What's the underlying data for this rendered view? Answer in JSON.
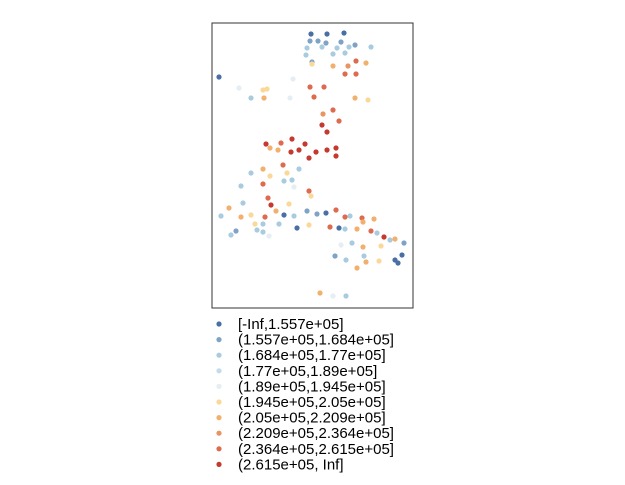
{
  "legend": {
    "entries": [
      {
        "label": "[-Inf,1.557e+05]",
        "color": "#4a6fa5"
      },
      {
        "label": "(1.557e+05,1.684e+05]",
        "color": "#7fa3c4"
      },
      {
        "label": "(1.684e+05,1.77e+05]",
        "color": "#a9cbe0"
      },
      {
        "label": "(1.77e+05,1.89e+05]",
        "color": "#c3dce9"
      },
      {
        "label": "(1.89e+05,1.945e+05]",
        "color": "#e4eef3"
      },
      {
        "label": "(1.945e+05,2.05e+05]",
        "color": "#fbd89a"
      },
      {
        "label": "(2.05e+05,2.209e+05]",
        "color": "#f2b06e"
      },
      {
        "label": "(2.209e+05,2.364e+05]",
        "color": "#e99463"
      },
      {
        "label": "(2.364e+05,2.615e+05]",
        "color": "#de6b4e"
      },
      {
        "label": "(2.615e+05, Inf]",
        "color": "#c6392f"
      }
    ]
  },
  "points": [
    {
      "x": 311,
      "y": 34,
      "c": 0
    },
    {
      "x": 327,
      "y": 34,
      "c": 0
    },
    {
      "x": 344,
      "y": 33,
      "c": 0
    },
    {
      "x": 310,
      "y": 41,
      "c": 1
    },
    {
      "x": 318,
      "y": 41,
      "c": 1
    },
    {
      "x": 326,
      "y": 43,
      "c": 1
    },
    {
      "x": 341,
      "y": 42,
      "c": 1
    },
    {
      "x": 355,
      "y": 45,
      "c": 1
    },
    {
      "x": 307,
      "y": 48,
      "c": 2
    },
    {
      "x": 322,
      "y": 47,
      "c": 2
    },
    {
      "x": 337,
      "y": 48,
      "c": 2
    },
    {
      "x": 349,
      "y": 47,
      "c": 2
    },
    {
      "x": 371,
      "y": 47,
      "c": 2
    },
    {
      "x": 306,
      "y": 55,
      "c": 2
    },
    {
      "x": 333,
      "y": 54,
      "c": 2
    },
    {
      "x": 345,
      "y": 53,
      "c": 2
    },
    {
      "x": 312,
      "y": 62,
      "c": 1
    },
    {
      "x": 356,
      "y": 61,
      "c": 8
    },
    {
      "x": 312,
      "y": 64,
      "c": 5
    },
    {
      "x": 333,
      "y": 66,
      "c": 6
    },
    {
      "x": 348,
      "y": 66,
      "c": 7
    },
    {
      "x": 366,
      "y": 63,
      "c": 6
    },
    {
      "x": 345,
      "y": 74,
      "c": 8
    },
    {
      "x": 356,
      "y": 74,
      "c": 8
    },
    {
      "x": 219,
      "y": 77,
      "c": 0
    },
    {
      "x": 293,
      "y": 79,
      "c": 4
    },
    {
      "x": 239,
      "y": 88,
      "c": 4
    },
    {
      "x": 263,
      "y": 90,
      "c": 5
    },
    {
      "x": 267,
      "y": 89,
      "c": 5
    },
    {
      "x": 310,
      "y": 87,
      "c": 8
    },
    {
      "x": 324,
      "y": 87,
      "c": 8
    },
    {
      "x": 251,
      "y": 98,
      "c": 2
    },
    {
      "x": 264,
      "y": 98,
      "c": 6
    },
    {
      "x": 290,
      "y": 98,
      "c": 4
    },
    {
      "x": 314,
      "y": 97,
      "c": 8
    },
    {
      "x": 355,
      "y": 98,
      "c": 6
    },
    {
      "x": 368,
      "y": 100,
      "c": 5
    },
    {
      "x": 333,
      "y": 110,
      "c": 8
    },
    {
      "x": 323,
      "y": 114,
      "c": 7
    },
    {
      "x": 339,
      "y": 121,
      "c": 8
    },
    {
      "x": 322,
      "y": 125,
      "c": 9
    },
    {
      "x": 327,
      "y": 132,
      "c": 9
    },
    {
      "x": 266,
      "y": 144,
      "c": 9
    },
    {
      "x": 281,
      "y": 143,
      "c": 8
    },
    {
      "x": 292,
      "y": 139,
      "c": 9
    },
    {
      "x": 305,
      "y": 144,
      "c": 9
    },
    {
      "x": 270,
      "y": 148,
      "c": 6
    },
    {
      "x": 278,
      "y": 150,
      "c": 6
    },
    {
      "x": 291,
      "y": 152,
      "c": 9
    },
    {
      "x": 299,
      "y": 150,
      "c": 9
    },
    {
      "x": 316,
      "y": 152,
      "c": 9
    },
    {
      "x": 327,
      "y": 150,
      "c": 9
    },
    {
      "x": 336,
      "y": 148,
      "c": 9
    },
    {
      "x": 309,
      "y": 158,
      "c": 9
    },
    {
      "x": 336,
      "y": 156,
      "c": 9
    },
    {
      "x": 263,
      "y": 169,
      "c": 6
    },
    {
      "x": 283,
      "y": 165,
      "c": 8
    },
    {
      "x": 270,
      "y": 176,
      "c": 5
    },
    {
      "x": 287,
      "y": 173,
      "c": 5
    },
    {
      "x": 299,
      "y": 169,
      "c": 2
    },
    {
      "x": 251,
      "y": 173,
      "c": 2
    },
    {
      "x": 263,
      "y": 184,
      "c": 8
    },
    {
      "x": 241,
      "y": 186,
      "c": 2
    },
    {
      "x": 284,
      "y": 181,
      "c": 2
    },
    {
      "x": 292,
      "y": 180,
      "c": 2
    },
    {
      "x": 294,
      "y": 187,
      "c": 4
    },
    {
      "x": 309,
      "y": 191,
      "c": 8
    },
    {
      "x": 229,
      "y": 208,
      "c": 6
    },
    {
      "x": 243,
      "y": 203,
      "c": 2
    },
    {
      "x": 268,
      "y": 198,
      "c": 8
    },
    {
      "x": 271,
      "y": 205,
      "c": 9
    },
    {
      "x": 289,
      "y": 204,
      "c": 5
    },
    {
      "x": 311,
      "y": 196,
      "c": 5
    },
    {
      "x": 221,
      "y": 216,
      "c": 2
    },
    {
      "x": 241,
      "y": 217,
      "c": 6
    },
    {
      "x": 251,
      "y": 215,
      "c": 5
    },
    {
      "x": 265,
      "y": 217,
      "c": 8
    },
    {
      "x": 276,
      "y": 211,
      "c": 6
    },
    {
      "x": 284,
      "y": 215,
      "c": 0
    },
    {
      "x": 294,
      "y": 216,
      "c": 2
    },
    {
      "x": 307,
      "y": 211,
      "c": 1
    },
    {
      "x": 317,
      "y": 214,
      "c": 1
    },
    {
      "x": 326,
      "y": 213,
      "c": 0
    },
    {
      "x": 336,
      "y": 210,
      "c": 8
    },
    {
      "x": 345,
      "y": 217,
      "c": 8
    },
    {
      "x": 350,
      "y": 216,
      "c": 2
    },
    {
      "x": 362,
      "y": 218,
      "c": 8
    },
    {
      "x": 363,
      "y": 222,
      "c": 6
    },
    {
      "x": 374,
      "y": 219,
      "c": 6
    },
    {
      "x": 255,
      "y": 224,
      "c": 5
    },
    {
      "x": 263,
      "y": 224,
      "c": 2
    },
    {
      "x": 279,
      "y": 224,
      "c": 2
    },
    {
      "x": 297,
      "y": 228,
      "c": 0
    },
    {
      "x": 309,
      "y": 225,
      "c": 5
    },
    {
      "x": 330,
      "y": 227,
      "c": 8
    },
    {
      "x": 339,
      "y": 228,
      "c": 0
    },
    {
      "x": 345,
      "y": 229,
      "c": 2
    },
    {
      "x": 357,
      "y": 229,
      "c": 6
    },
    {
      "x": 371,
      "y": 231,
      "c": 8
    },
    {
      "x": 377,
      "y": 233,
      "c": 2
    },
    {
      "x": 236,
      "y": 231,
      "c": 1
    },
    {
      "x": 231,
      "y": 235,
      "c": 2
    },
    {
      "x": 257,
      "y": 230,
      "c": 2
    },
    {
      "x": 263,
      "y": 232,
      "c": 2
    },
    {
      "x": 269,
      "y": 236,
      "c": 4
    },
    {
      "x": 384,
      "y": 237,
      "c": 9
    },
    {
      "x": 390,
      "y": 240,
      "c": 2
    },
    {
      "x": 395,
      "y": 239,
      "c": 6
    },
    {
      "x": 404,
      "y": 243,
      "c": 1
    },
    {
      "x": 341,
      "y": 245,
      "c": 4
    },
    {
      "x": 352,
      "y": 243,
      "c": 2
    },
    {
      "x": 363,
      "y": 247,
      "c": 6
    },
    {
      "x": 381,
      "y": 246,
      "c": 5
    },
    {
      "x": 335,
      "y": 256,
      "c": 1
    },
    {
      "x": 364,
      "y": 256,
      "c": 2
    },
    {
      "x": 366,
      "y": 262,
      "c": 6
    },
    {
      "x": 402,
      "y": 255,
      "c": 0
    },
    {
      "x": 395,
      "y": 260,
      "c": 0
    },
    {
      "x": 346,
      "y": 260,
      "c": 2
    },
    {
      "x": 379,
      "y": 261,
      "c": 5
    },
    {
      "x": 398,
      "y": 263,
      "c": 0
    },
    {
      "x": 357,
      "y": 268,
      "c": 6
    },
    {
      "x": 320,
      "y": 293,
      "c": 6
    },
    {
      "x": 333,
      "y": 296,
      "c": 4
    },
    {
      "x": 346,
      "y": 296,
      "c": 2
    }
  ]
}
